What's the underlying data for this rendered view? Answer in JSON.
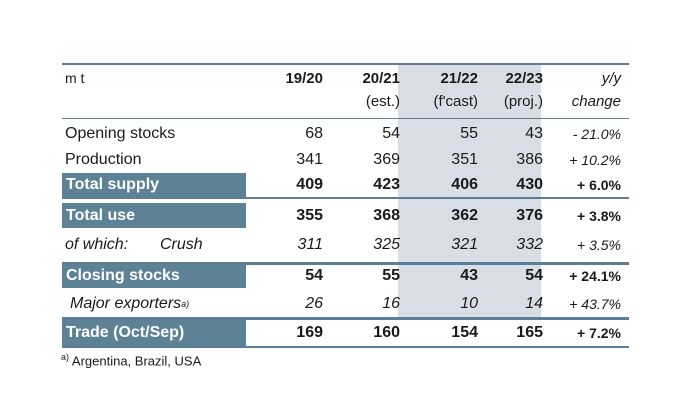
{
  "header": {
    "unit": "m t",
    "cols": [
      {
        "year": "19/20",
        "note": ""
      },
      {
        "year": "20/21",
        "note": "(est.)"
      },
      {
        "year": "21/22",
        "note": "(f'cast)"
      },
      {
        "year": "22/23",
        "note": "(proj.)"
      }
    ],
    "change_line1": "y/y",
    "change_line2": "change"
  },
  "rows": [
    {
      "label": "Opening stocks",
      "values": [
        "68",
        "54",
        "55",
        "43"
      ],
      "change": "- 21.0%"
    },
    {
      "label": "Production",
      "values": [
        "341",
        "369",
        "351",
        "386"
      ],
      "change": "+ 10.2%"
    },
    {
      "label": "Total supply",
      "values": [
        "409",
        "423",
        "406",
        "430"
      ],
      "change": "+ 6.0%"
    },
    {
      "label": "Total use",
      "values": [
        "355",
        "368",
        "362",
        "376"
      ],
      "change": "+ 3.8%"
    },
    {
      "label": "of which:",
      "label2": "Crush",
      "values": [
        "311",
        "325",
        "321",
        "332"
      ],
      "change": "+ 3.5%"
    },
    {
      "label": "Closing stocks",
      "values": [
        "54",
        "55",
        "43",
        "54"
      ],
      "change": "+ 24.1%"
    },
    {
      "label": "Major exporters",
      "label_sup": "a)",
      "values": [
        "26",
        "16",
        "10",
        "14"
      ],
      "change": "+ 43.7%"
    },
    {
      "label": "Trade (Oct/Sep)",
      "values": [
        "169",
        "160",
        "154",
        "165"
      ],
      "change": "+ 7.2%"
    }
  ],
  "footnote": {
    "marker": "a)",
    "text": " Argentina, Brazil, USA"
  },
  "colors": {
    "accent": "#5d8296",
    "shade": "#d9dee6",
    "rule": "#5d7e96"
  }
}
